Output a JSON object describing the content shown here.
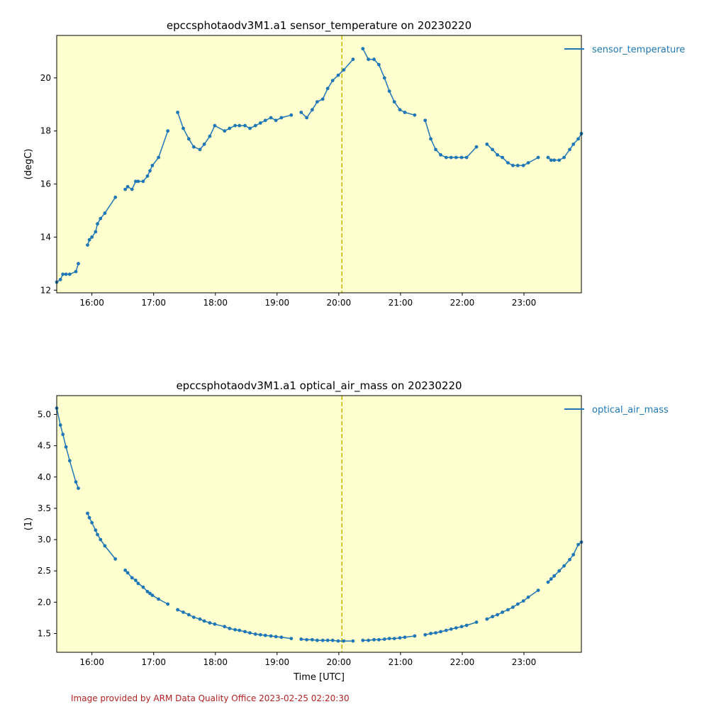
{
  "colors": {
    "background": "#ffffd0",
    "series": "#1f77b4",
    "marker_line": "#c8b400",
    "footer": "#b22222"
  },
  "footer": {
    "text": "Image provided by ARM Data Quality Office 2023-02-25 02:20:30"
  },
  "chart_data": [
    {
      "type": "line",
      "title": "epccsphotaodv3M1.a1 sensor_temperature on 20230220",
      "xlabel": "",
      "ylabel": "(degC)",
      "xlim": [
        15.43,
        23.93
      ],
      "ylim": [
        11.9,
        21.6
      ],
      "x_ticks": [
        16,
        17,
        18,
        19,
        20,
        21,
        22,
        23
      ],
      "x_tick_labels": [
        "16:00",
        "17:00",
        "18:00",
        "19:00",
        "20:00",
        "21:00",
        "22:00",
        "23:00"
      ],
      "y_ticks": [
        12,
        14,
        16,
        18,
        20
      ],
      "y_tick_labels": [
        "12",
        "14",
        "16",
        "18",
        "20"
      ],
      "vline_x": 20.05,
      "legend_position": "outside-right-top",
      "series": [
        {
          "name": "sensor_temperature",
          "segments": [
            [
              [
                15.43,
                12.3
              ],
              [
                15.49,
                12.4
              ],
              [
                15.53,
                12.6
              ],
              [
                15.58,
                12.6
              ],
              [
                15.64,
                12.6
              ],
              [
                15.74,
                12.7
              ],
              [
                15.78,
                13.0
              ]
            ],
            [
              [
                15.93,
                13.7
              ],
              [
                15.96,
                13.9
              ],
              [
                16.0,
                14.0
              ],
              [
                16.06,
                14.2
              ],
              [
                16.09,
                14.5
              ],
              [
                16.14,
                14.7
              ],
              [
                16.21,
                14.9
              ],
              [
                16.38,
                15.5
              ]
            ],
            [
              [
                16.54,
                15.8
              ],
              [
                16.58,
                15.9
              ],
              [
                16.65,
                15.8
              ],
              [
                16.71,
                16.1
              ],
              [
                16.75,
                16.1
              ],
              [
                16.83,
                16.1
              ],
              [
                16.9,
                16.3
              ],
              [
                16.94,
                16.5
              ],
              [
                16.98,
                16.7
              ],
              [
                17.08,
                17.0
              ],
              [
                17.23,
                18.0
              ]
            ],
            [
              [
                17.39,
                18.7
              ],
              [
                17.48,
                18.1
              ],
              [
                17.57,
                17.7
              ],
              [
                17.65,
                17.4
              ],
              [
                17.75,
                17.3
              ],
              [
                17.82,
                17.5
              ],
              [
                17.91,
                17.8
              ],
              [
                17.99,
                18.2
              ],
              [
                18.15,
                18.0
              ],
              [
                18.23,
                18.1
              ],
              [
                18.32,
                18.2
              ],
              [
                18.39,
                18.2
              ],
              [
                18.48,
                18.2
              ],
              [
                18.56,
                18.1
              ],
              [
                18.65,
                18.2
              ],
              [
                18.73,
                18.3
              ],
              [
                18.81,
                18.4
              ],
              [
                18.9,
                18.5
              ],
              [
                18.98,
                18.4
              ],
              [
                19.07,
                18.5
              ],
              [
                19.23,
                18.6
              ]
            ],
            [
              [
                19.39,
                18.7
              ],
              [
                19.48,
                18.5
              ],
              [
                19.57,
                18.8
              ],
              [
                19.65,
                19.1
              ],
              [
                19.74,
                19.2
              ],
              [
                19.82,
                19.6
              ],
              [
                19.9,
                19.9
              ],
              [
                19.99,
                20.1
              ],
              [
                20.08,
                20.3
              ],
              [
                20.23,
                20.7
              ]
            ],
            [
              [
                20.39,
                21.1
              ],
              [
                20.48,
                20.7
              ],
              [
                20.57,
                20.7
              ],
              [
                20.65,
                20.5
              ],
              [
                20.74,
                20.0
              ],
              [
                20.82,
                19.5
              ],
              [
                20.9,
                19.1
              ],
              [
                20.99,
                18.8
              ],
              [
                21.07,
                18.7
              ],
              [
                21.23,
                18.6
              ]
            ],
            [
              [
                21.4,
                18.4
              ],
              [
                21.49,
                17.7
              ],
              [
                21.57,
                17.3
              ],
              [
                21.65,
                17.1
              ],
              [
                21.74,
                17.0
              ],
              [
                21.82,
                17.0
              ],
              [
                21.9,
                17.0
              ],
              [
                21.99,
                17.0
              ],
              [
                22.07,
                17.0
              ],
              [
                22.23,
                17.4
              ]
            ],
            [
              [
                22.4,
                17.5
              ],
              [
                22.49,
                17.3
              ],
              [
                22.57,
                17.1
              ],
              [
                22.65,
                17.0
              ],
              [
                22.74,
                16.8
              ],
              [
                22.82,
                16.7
              ],
              [
                22.9,
                16.7
              ],
              [
                22.99,
                16.7
              ],
              [
                23.07,
                16.8
              ],
              [
                23.23,
                17.0
              ]
            ],
            [
              [
                23.39,
                17.0
              ],
              [
                23.44,
                16.9
              ],
              [
                23.49,
                16.9
              ],
              [
                23.57,
                16.9
              ],
              [
                23.65,
                17.0
              ],
              [
                23.74,
                17.3
              ],
              [
                23.8,
                17.5
              ],
              [
                23.88,
                17.7
              ],
              [
                23.93,
                17.9
              ]
            ]
          ]
        }
      ]
    },
    {
      "type": "line",
      "title": "epccsphotaodv3M1.a1 optical_air_mass on 20230220",
      "xlabel": "Time [UTC]",
      "ylabel": "(1)",
      "xlim": [
        15.43,
        23.93
      ],
      "ylim": [
        1.2,
        5.3
      ],
      "x_ticks": [
        16,
        17,
        18,
        19,
        20,
        21,
        22,
        23
      ],
      "x_tick_labels": [
        "16:00",
        "17:00",
        "18:00",
        "19:00",
        "20:00",
        "21:00",
        "22:00",
        "23:00"
      ],
      "y_ticks": [
        1.5,
        2.0,
        2.5,
        3.0,
        3.5,
        4.0,
        4.5,
        5.0
      ],
      "y_tick_labels": [
        "1.5",
        "2.0",
        "2.5",
        "3.0",
        "3.5",
        "4.0",
        "4.5",
        "5.0"
      ],
      "vline_x": 20.05,
      "legend_position": "outside-right-top",
      "series": [
        {
          "name": "optical_air_mass",
          "segments": [
            [
              [
                15.43,
                5.1
              ],
              [
                15.49,
                4.83
              ],
              [
                15.53,
                4.68
              ],
              [
                15.58,
                4.48
              ],
              [
                15.64,
                4.26
              ],
              [
                15.74,
                3.92
              ],
              [
                15.78,
                3.82
              ]
            ],
            [
              [
                15.93,
                3.42
              ],
              [
                15.96,
                3.35
              ],
              [
                16.0,
                3.27
              ],
              [
                16.06,
                3.15
              ],
              [
                16.09,
                3.08
              ],
              [
                16.14,
                3.0
              ],
              [
                16.21,
                2.9
              ],
              [
                16.38,
                2.69
              ]
            ],
            [
              [
                16.54,
                2.51
              ],
              [
                16.58,
                2.47
              ],
              [
                16.65,
                2.39
              ],
              [
                16.71,
                2.35
              ],
              [
                16.75,
                2.3
              ],
              [
                16.83,
                2.24
              ],
              [
                16.9,
                2.17
              ],
              [
                16.94,
                2.14
              ],
              [
                16.98,
                2.11
              ],
              [
                17.08,
                2.05
              ],
              [
                17.23,
                1.97
              ]
            ],
            [
              [
                17.39,
                1.88
              ],
              [
                17.48,
                1.84
              ],
              [
                17.57,
                1.8
              ],
              [
                17.65,
                1.76
              ],
              [
                17.75,
                1.73
              ],
              [
                17.82,
                1.7
              ],
              [
                17.91,
                1.67
              ],
              [
                17.99,
                1.65
              ],
              [
                18.15,
                1.61
              ],
              [
                18.23,
                1.58
              ],
              [
                18.32,
                1.56
              ],
              [
                18.39,
                1.55
              ],
              [
                18.48,
                1.53
              ],
              [
                18.56,
                1.51
              ],
              [
                18.65,
                1.49
              ],
              [
                18.73,
                1.48
              ],
              [
                18.81,
                1.47
              ],
              [
                18.9,
                1.46
              ],
              [
                18.98,
                1.45
              ],
              [
                19.07,
                1.44
              ],
              [
                19.23,
                1.42
              ]
            ],
            [
              [
                19.39,
                1.41
              ],
              [
                19.48,
                1.4
              ],
              [
                19.57,
                1.4
              ],
              [
                19.65,
                1.39
              ],
              [
                19.74,
                1.39
              ],
              [
                19.82,
                1.39
              ],
              [
                19.9,
                1.39
              ],
              [
                19.99,
                1.38
              ],
              [
                20.08,
                1.38
              ],
              [
                20.23,
                1.38
              ]
            ],
            [
              [
                20.39,
                1.39
              ],
              [
                20.48,
                1.39
              ],
              [
                20.57,
                1.4
              ],
              [
                20.65,
                1.4
              ],
              [
                20.74,
                1.41
              ],
              [
                20.82,
                1.42
              ],
              [
                20.9,
                1.42
              ],
              [
                20.99,
                1.43
              ],
              [
                21.07,
                1.44
              ],
              [
                21.23,
                1.46
              ]
            ],
            [
              [
                21.4,
                1.48
              ],
              [
                21.49,
                1.5
              ],
              [
                21.57,
                1.51
              ],
              [
                21.65,
                1.53
              ],
              [
                21.74,
                1.55
              ],
              [
                21.82,
                1.57
              ],
              [
                21.9,
                1.59
              ],
              [
                21.99,
                1.61
              ],
              [
                22.07,
                1.63
              ],
              [
                22.23,
                1.68
              ]
            ],
            [
              [
                22.4,
                1.73
              ],
              [
                22.49,
                1.77
              ],
              [
                22.57,
                1.8
              ],
              [
                22.65,
                1.84
              ],
              [
                22.74,
                1.88
              ],
              [
                22.82,
                1.92
              ],
              [
                22.9,
                1.97
              ],
              [
                22.99,
                2.02
              ],
              [
                23.07,
                2.08
              ],
              [
                23.23,
                2.19
              ]
            ],
            [
              [
                23.39,
                2.32
              ],
              [
                23.44,
                2.37
              ],
              [
                23.49,
                2.42
              ],
              [
                23.57,
                2.5
              ],
              [
                23.65,
                2.58
              ],
              [
                23.74,
                2.68
              ],
              [
                23.8,
                2.76
              ],
              [
                23.88,
                2.92
              ],
              [
                23.93,
                2.96
              ]
            ]
          ]
        }
      ]
    }
  ]
}
